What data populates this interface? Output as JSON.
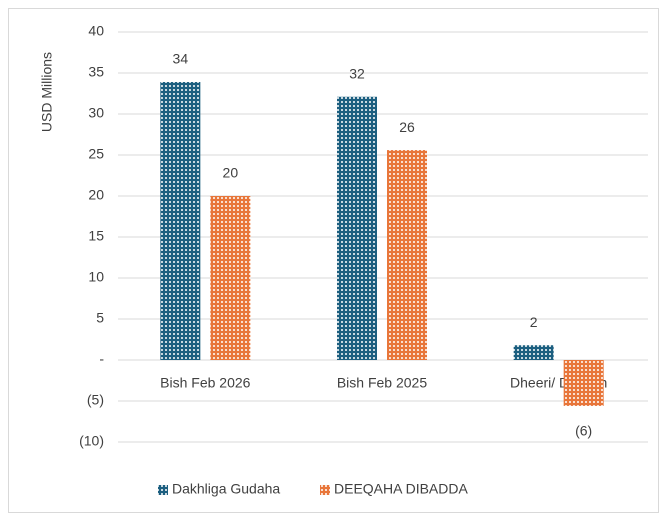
{
  "chart_data": {
    "type": "bar",
    "y_label": "USD Millions",
    "categories": [
      "Bish Feb 2026",
      "Bish Feb 2025",
      "Dheeri/ Dhiman"
    ],
    "series": [
      {
        "name": "Dakhliga Gudaha",
        "color": "#1c5f80",
        "values": [
          33.9,
          32.1,
          1.8
        ],
        "value_labels": [
          "34",
          "32",
          "2"
        ]
      },
      {
        "name": "DEEQAHA DIBADDA",
        "color": "#e8763a",
        "values": [
          20,
          25.6,
          -5.6
        ],
        "value_labels": [
          "20",
          "26",
          "(6)"
        ]
      }
    ],
    "ylim": [
      -10,
      40
    ],
    "yticks": [
      {
        "value": -10,
        "label": "(10)"
      },
      {
        "value": -5,
        "label": "(5)"
      },
      {
        "value": 0,
        "label": "-"
      },
      5,
      10,
      15,
      20,
      25,
      30,
      35,
      40
    ],
    "grid": true,
    "legend": "bottom"
  }
}
